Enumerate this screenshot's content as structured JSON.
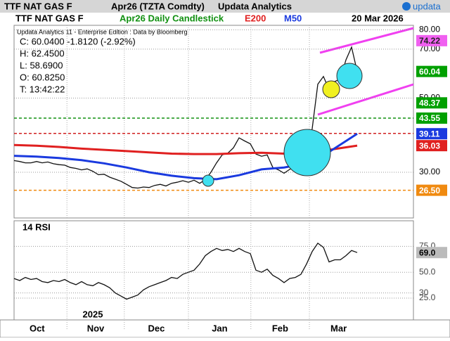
{
  "header": {
    "instrument": "TTF NAT GAS F",
    "contract": "Apr26 (TZTA Comdty)",
    "provider": "Updata Analytics",
    "logo": "updata"
  },
  "x_axis": {
    "xlim": [
      0,
      71
    ],
    "year_label": "2025",
    "xticks": [
      {
        "value": -1.2,
        "label": "Oct"
      },
      {
        "value": 9.4,
        "label": "Nov"
      },
      {
        "value": 19.6,
        "label": "Dec"
      },
      {
        "value": 31,
        "label": "Jan"
      },
      {
        "value": 42.1,
        "label": "Feb"
      },
      {
        "value": 52.5,
        "label": "Mar"
      }
    ]
  },
  "chart_data": [
    {
      "type": "line",
      "title": "TTF NAT GAS F",
      "subtitle": "Apr26 Daily Candlestick",
      "date": "20 Mar 2026",
      "info": [
        "Updata Analytics 11 - Enterprise Edition : Data by Bloomberg",
        "C: 60.0400  -1.8120 (-2.92%)",
        "H: 62.4500",
        "L: 58.6900",
        "O: 60.8250",
        "T: 13:42:22"
      ],
      "log_scale": true,
      "grid": true,
      "color": "#111111",
      "ylim": [
        21.9,
        81.7
      ],
      "yticks": [
        {
          "value": 80,
          "label": "80.00"
        },
        {
          "value": 70,
          "label": "70.00"
        },
        {
          "value": 50,
          "label": "50.00"
        },
        {
          "value": 30,
          "label": "30.00"
        }
      ],
      "x": [
        0,
        1,
        2,
        3,
        4,
        5,
        6,
        7,
        8,
        9,
        10,
        11,
        12,
        13,
        14,
        15,
        16,
        17,
        18,
        19,
        20,
        21,
        22,
        23,
        24,
        25,
        26,
        27,
        28,
        29,
        30,
        31,
        32,
        33,
        34,
        35,
        36,
        37,
        38,
        39,
        40,
        41,
        42,
        43,
        44,
        45,
        46,
        47,
        48,
        49,
        50,
        51,
        52,
        53,
        54,
        55,
        56,
        57,
        58,
        59,
        60,
        61
      ],
      "values": [
        32.5,
        32.3,
        32.0,
        32.0,
        32.3,
        32.0,
        32.2,
        31.8,
        31.6,
        31.5,
        31.0,
        30.8,
        30.5,
        30.7,
        30.2,
        29.5,
        29.6,
        29.0,
        28.6,
        28.2,
        27.6,
        27.0,
        26.9,
        27.1,
        27.0,
        27.4,
        27.6,
        27.3,
        27.8,
        28.0,
        28.3,
        28.0,
        28.4,
        27.8,
        28.5,
        30.0,
        32.0,
        33.8,
        34.2,
        35.5,
        38.0,
        37.2,
        36.5,
        34.0,
        33.5,
        33.8,
        31.0,
        30.5,
        29.8,
        30.6,
        31.2,
        30.5,
        32.5,
        40.5,
        55.0,
        58.0,
        53.0,
        56.0,
        57.0,
        65.0,
        71.0,
        60.04
      ],
      "series": [
        {
          "name": "E200",
          "color": "#e02020",
          "x": [
            0,
            4,
            8,
            12,
            16,
            20,
            24,
            28,
            32,
            36,
            40,
            44,
            48,
            52,
            56,
            61
          ],
          "values": [
            36.2,
            36.0,
            35.7,
            35.3,
            35.0,
            34.7,
            34.4,
            34.1,
            34.0,
            34.0,
            34.2,
            34.3,
            34.1,
            34.4,
            35.0,
            36.03
          ]
        },
        {
          "name": "M50",
          "color": "#1a3adf",
          "x": [
            0,
            4,
            8,
            12,
            16,
            20,
            24,
            28,
            32,
            36,
            40,
            44,
            48,
            52,
            56,
            61
          ],
          "values": [
            33.6,
            33.4,
            33.1,
            32.6,
            31.9,
            31.0,
            30.0,
            29.3,
            28.8,
            28.6,
            29.4,
            30.6,
            31.0,
            31.9,
            34.5,
            39.11
          ]
        }
      ],
      "levels": [
        {
          "value": 43.55,
          "color": "#109010"
        },
        {
          "value": 39.2,
          "color": "#d02020"
        },
        {
          "value": 26.5,
          "color": "#f08a10"
        }
      ],
      "price_labels": [
        {
          "value": 74.22,
          "label": "74.22",
          "color": "#f060f0"
        },
        {
          "value": 60.04,
          "label": "60.04",
          "color": "#00a000"
        },
        {
          "value": 48.37,
          "label": "48.37",
          "color": "#00a000"
        },
        {
          "value": 43.55,
          "label": "43.55",
          "color": "#00a000"
        },
        {
          "value": 39.11,
          "label": "39.11",
          "color": "#1a3adf"
        },
        {
          "value": 36.03,
          "label": "36.03",
          "color": "#e02020"
        },
        {
          "value": 26.5,
          "label": "26.50",
          "color": "#f08a10"
        }
      ]
    },
    {
      "type": "line",
      "title": "14 RSI",
      "color": "#111111",
      "grid": true,
      "ylim": [
        4,
        99
      ],
      "yticks": [
        {
          "value": 75,
          "label": "75.0"
        },
        {
          "value": 50,
          "label": "50.0"
        },
        30,
        {
          "value": 25,
          "label": "25.0"
        }
      ],
      "x": [
        0,
        1,
        2,
        3,
        4,
        5,
        6,
        7,
        8,
        9,
        10,
        11,
        12,
        13,
        14,
        15,
        16,
        17,
        18,
        19,
        20,
        21,
        22,
        23,
        24,
        25,
        26,
        27,
        28,
        29,
        30,
        31,
        32,
        33,
        34,
        35,
        36,
        37,
        38,
        39,
        40,
        41,
        42,
        43,
        44,
        45,
        46,
        47,
        48,
        49,
        50,
        51,
        52,
        53,
        54,
        55,
        56,
        57,
        58,
        59,
        60,
        61
      ],
      "values": [
        44,
        42,
        45,
        43,
        44,
        41,
        40,
        42,
        41,
        43,
        40,
        38,
        41,
        38,
        37,
        40,
        38,
        35,
        30,
        27,
        24,
        26,
        28,
        33,
        36,
        38,
        40,
        42,
        45,
        44,
        48,
        50,
        52,
        58,
        66,
        70,
        73,
        71,
        72,
        70,
        73,
        70,
        68,
        52,
        50,
        53,
        47,
        44,
        40,
        44,
        45,
        48,
        58,
        70,
        78,
        74,
        60,
        62,
        62,
        66,
        71,
        69.0
      ],
      "value_label": {
        "value": 69.0,
        "label": "69.0"
      }
    }
  ]
}
